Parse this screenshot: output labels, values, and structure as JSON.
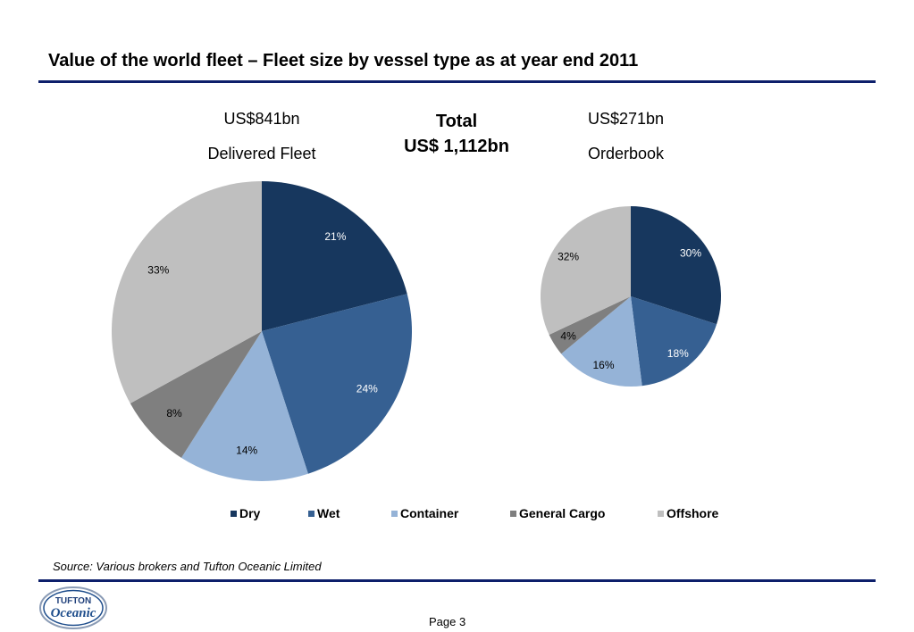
{
  "header": {
    "title": "Value of the world fleet – Fleet size by vessel type as at year end 2011"
  },
  "delivered": {
    "value_label": "US$841bn",
    "name": "Delivered Fleet"
  },
  "orderbook": {
    "value_label": "US$271bn",
    "name": "Orderbook"
  },
  "total": {
    "line1": "Total",
    "line2": "US$ 1,112bn"
  },
  "colors": {
    "Dry": "#17375e",
    "Wet": "#366092",
    "Container": "#95b3d7",
    "General Cargo": "#7f7f7f",
    "Offshore": "#bfbfbf"
  },
  "legend": {
    "items": [
      "Dry",
      "Wet",
      "Container",
      "General Cargo",
      "Offshore"
    ]
  },
  "chart_data": [
    {
      "type": "pie",
      "title": "Delivered Fleet",
      "categories": [
        "Dry",
        "Wet",
        "Container",
        "General Cargo",
        "Offshore"
      ],
      "values": [
        21,
        24,
        14,
        8,
        33
      ],
      "labels": [
        "21%",
        "24%",
        "14%",
        "8%",
        "33%"
      ]
    },
    {
      "type": "pie",
      "title": "Orderbook",
      "categories": [
        "Dry",
        "Wet",
        "Container",
        "General Cargo",
        "Offshore"
      ],
      "values": [
        30,
        18,
        16,
        4,
        32
      ],
      "labels": [
        "30%",
        "18%",
        "16%",
        "4%",
        "32%"
      ]
    }
  ],
  "footer": {
    "source": "Source: Various brokers and Tufton Oceanic Limited",
    "page": "Page 3",
    "logo_line1": "TUFTON",
    "logo_line2": "Oceanic"
  }
}
